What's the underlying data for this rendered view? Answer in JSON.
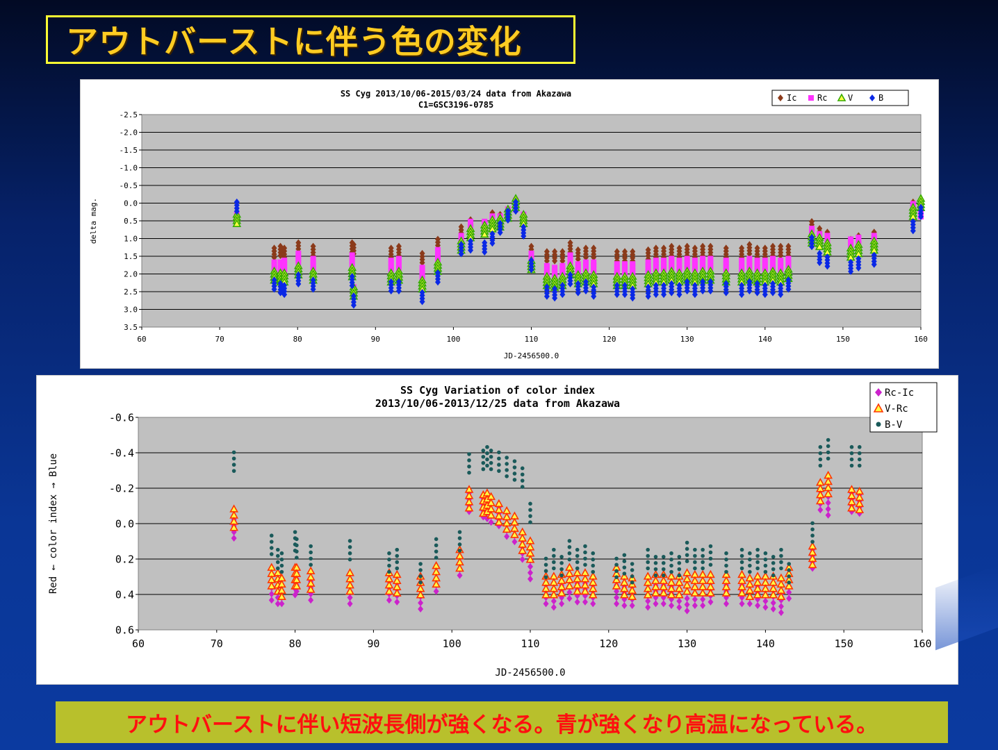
{
  "slide": {
    "title": "アウトバーストに伴う色の変化",
    "caption": "アウトバーストに伴い短波長側が強くなる。青が強くなり高温になっている。"
  },
  "chart_data": [
    {
      "type": "scatter",
      "title": "SS Cyg  2013/10/06-2015/03/24    data from Akazawa",
      "subtitle": "C1=GSC3196-0785",
      "xlabel": "JD-2456500.0",
      "ylabel": "delta mag.",
      "xlim": [
        60,
        160
      ],
      "ylim": [
        -2.5,
        3.5
      ],
      "y_inverted": true,
      "xticks": [
        "60",
        "70",
        "80",
        "90",
        "100",
        "110",
        "120",
        "130",
        "140",
        "150",
        "160"
      ],
      "yticks": [
        "-2.5",
        "-2.0",
        "-1.5",
        "-1.0",
        "-0.5",
        "0.0",
        "0.5",
        "1.0",
        "1.5",
        "2.0",
        "2.5",
        "3.0",
        "3.5"
      ],
      "grid": true,
      "legend_position": "top-right",
      "series": [
        {
          "name": "Ic",
          "color": "#8b3a1a",
          "marker": "diamond",
          "x": [
            72.2,
            77,
            77.8,
            78.3,
            80.1,
            82,
            87,
            87.2,
            92,
            93,
            96,
            98,
            101,
            102.2,
            104,
            105,
            106,
            107,
            108,
            109,
            110,
            112,
            113,
            114,
            115,
            116,
            117,
            118,
            121,
            122,
            123,
            125,
            126,
            127,
            128,
            129,
            130,
            131,
            132,
            133,
            135,
            137,
            138,
            139,
            140,
            141,
            142,
            143,
            146,
            147,
            148,
            151,
            152,
            154,
            159,
            160
          ],
          "y": [
            0.45,
            1.4,
            1.35,
            1.4,
            1.25,
            1.35,
            1.25,
            1.3,
            1.4,
            1.35,
            1.55,
            1.15,
            0.8,
            0.6,
            0.7,
            0.4,
            0.45,
            0.3,
            0.05,
            0.5,
            1.35,
            1.5,
            1.5,
            1.5,
            1.25,
            1.45,
            1.4,
            1.4,
            1.5,
            1.5,
            1.5,
            1.45,
            1.4,
            1.4,
            1.35,
            1.4,
            1.35,
            1.4,
            1.35,
            1.35,
            1.4,
            1.4,
            1.3,
            1.4,
            1.4,
            1.35,
            1.35,
            1.35,
            0.65,
            0.85,
            0.95,
            1.15,
            1.05,
            0.95,
            0.1,
            0.2
          ]
        },
        {
          "name": "Rc",
          "color": "#ff33ff",
          "marker": "square",
          "x": [
            72.2,
            77,
            77.8,
            78.3,
            80.1,
            82,
            87,
            87.2,
            92,
            93,
            96,
            98,
            101,
            102.2,
            104,
            105,
            106,
            107,
            108,
            109,
            110,
            112,
            113,
            114,
            115,
            116,
            117,
            118,
            121,
            122,
            123,
            125,
            126,
            127,
            128,
            129,
            130,
            131,
            132,
            133,
            135,
            137,
            138,
            139,
            140,
            141,
            142,
            143,
            146,
            147,
            148,
            151,
            152,
            154,
            159,
            160
          ],
          "y": [
            0.45,
            1.8,
            1.8,
            1.75,
            1.55,
            1.7,
            1.6,
            2.5,
            1.75,
            1.7,
            1.95,
            1.45,
            1.05,
            0.65,
            0.65,
            0.5,
            0.5,
            0.3,
            0.05,
            0.45,
            1.55,
            1.9,
            1.95,
            1.9,
            1.6,
            1.85,
            1.8,
            1.8,
            1.85,
            1.85,
            1.85,
            1.8,
            1.75,
            1.75,
            1.7,
            1.75,
            1.7,
            1.75,
            1.7,
            1.7,
            1.75,
            1.75,
            1.7,
            1.75,
            1.75,
            1.7,
            1.75,
            1.7,
            0.85,
            1.0,
            1.05,
            1.15,
            1.1,
            1.05,
            0.15,
            0.25
          ]
        },
        {
          "name": "V",
          "color": "#33aa00",
          "marker": "triangle",
          "x": [
            72.2,
            77,
            77.8,
            78.3,
            80.1,
            82,
            87,
            87.2,
            92,
            93,
            96,
            98,
            101,
            102.2,
            104,
            105,
            106,
            107,
            108,
            109,
            110,
            112,
            113,
            114,
            115,
            116,
            117,
            118,
            121,
            122,
            123,
            125,
            126,
            127,
            128,
            129,
            130,
            131,
            132,
            133,
            135,
            137,
            138,
            139,
            140,
            141,
            142,
            143,
            146,
            147,
            148,
            151,
            152,
            154,
            159,
            160
          ],
          "y": [
            0.45,
            2.05,
            2.1,
            2.1,
            1.9,
            2.05,
            1.95,
            2.5,
            2.1,
            2.05,
            2.3,
            1.8,
            1.2,
            0.85,
            0.75,
            0.6,
            0.55,
            0.3,
            0.0,
            0.45,
            1.75,
            2.2,
            2.25,
            2.2,
            1.9,
            2.15,
            2.1,
            2.15,
            2.2,
            2.2,
            2.2,
            2.15,
            2.1,
            2.1,
            2.05,
            2.1,
            2.05,
            2.1,
            2.05,
            2.05,
            2.1,
            2.1,
            2.05,
            2.1,
            2.1,
            2.05,
            2.1,
            2.0,
            1.0,
            1.1,
            1.25,
            1.4,
            1.3,
            1.2,
            0.25,
            0.0
          ]
        },
        {
          "name": "B",
          "color": "#0a28e6",
          "marker": "diamond",
          "x": [
            72.2,
            77,
            77.8,
            78.3,
            80.1,
            82,
            87,
            87.2,
            92,
            93,
            96,
            98,
            101,
            102.2,
            104,
            105,
            106,
            107,
            108,
            109,
            110,
            112,
            113,
            114,
            115,
            116,
            117,
            118,
            121,
            122,
            123,
            125,
            126,
            127,
            128,
            129,
            130,
            131,
            132,
            133,
            135,
            137,
            138,
            139,
            140,
            141,
            142,
            143,
            146,
            147,
            148,
            151,
            152,
            154,
            159,
            160
          ],
          "y": [
            0.1,
            2.3,
            2.4,
            2.45,
            2.15,
            2.3,
            2.2,
            2.75,
            2.35,
            2.35,
            2.65,
            2.1,
            1.3,
            1.2,
            1.25,
            1.0,
            0.7,
            0.35,
            0.1,
            0.8,
            1.75,
            2.5,
            2.55,
            2.45,
            2.15,
            2.4,
            2.35,
            2.5,
            2.45,
            2.45,
            2.55,
            2.5,
            2.45,
            2.45,
            2.4,
            2.45,
            2.35,
            2.45,
            2.35,
            2.35,
            2.4,
            2.45,
            2.35,
            2.4,
            2.45,
            2.4,
            2.45,
            2.3,
            1.1,
            1.55,
            1.65,
            1.8,
            1.7,
            1.6,
            0.65,
            0.25
          ]
        }
      ]
    },
    {
      "type": "scatter",
      "title": "SS Cyg   Variation of color index",
      "subtitle": "2013/10/06-2013/12/25    data from Akazawa",
      "xlabel": "JD-2456500.0",
      "ylabel": "Red ← color index → Blue",
      "xlim": [
        60,
        160
      ],
      "ylim": [
        -0.6,
        0.6
      ],
      "y_inverted": true,
      "xticks": [
        "60",
        "70",
        "80",
        "90",
        "100",
        "110",
        "120",
        "130",
        "140",
        "150",
        "160"
      ],
      "yticks": [
        "-0.6",
        "-0.4",
        "-0.2",
        "0.0",
        "0.2",
        "0.4",
        "0.6"
      ],
      "grid": true,
      "legend_position": "top-right",
      "series": [
        {
          "name": "Rc-Ic",
          "color": "#cc22cc",
          "marker": "diamond",
          "x": [
            72.2,
            77,
            77.8,
            78.3,
            80,
            80.2,
            82,
            87,
            92,
            93,
            96,
            98,
            101,
            102.2,
            104,
            104.5,
            105,
            106,
            107,
            108,
            109,
            110,
            112,
            113,
            114,
            115,
            116,
            117,
            118,
            121,
            122,
            123,
            125,
            126,
            127,
            128,
            129,
            130,
            131,
            132,
            133,
            135,
            137,
            138,
            139,
            140,
            141,
            142,
            143,
            146,
            147,
            148,
            151,
            152
          ],
          "y": [
            0.03,
            0.38,
            0.4,
            0.4,
            0.35,
            0.33,
            0.38,
            0.4,
            0.38,
            0.39,
            0.43,
            0.33,
            0.24,
            -0.12,
            -0.09,
            -0.08,
            -0.06,
            -0.04,
            0.02,
            0.05,
            0.15,
            0.26,
            0.4,
            0.42,
            0.4,
            0.37,
            0.39,
            0.39,
            0.4,
            0.4,
            0.41,
            0.41,
            0.42,
            0.4,
            0.4,
            0.41,
            0.42,
            0.44,
            0.41,
            0.41,
            0.39,
            0.4,
            0.4,
            0.4,
            0.41,
            0.42,
            0.43,
            0.45,
            0.37,
            0.2,
            -0.13,
            -0.1,
            -0.12,
            -0.11
          ]
        },
        {
          "name": "V-Rc",
          "color": "#ff3300",
          "marker": "triangle",
          "x": [
            72.2,
            77,
            77.8,
            78.3,
            80,
            80.2,
            82,
            87,
            92,
            93,
            96,
            98,
            101,
            102.2,
            104,
            104.5,
            105,
            106,
            107,
            108,
            109,
            110,
            112,
            113,
            114,
            115,
            116,
            117,
            118,
            121,
            122,
            123,
            125,
            126,
            127,
            128,
            129,
            130,
            131,
            132,
            133,
            135,
            137,
            138,
            139,
            140,
            141,
            142,
            143,
            146,
            147,
            148,
            151,
            152
          ],
          "y": [
            -0.03,
            0.3,
            0.33,
            0.36,
            0.3,
            0.3,
            0.32,
            0.33,
            0.33,
            0.34,
            0.35,
            0.29,
            0.2,
            -0.14,
            -0.11,
            -0.12,
            -0.1,
            -0.06,
            -0.02,
            0.01,
            0.1,
            0.15,
            0.35,
            0.35,
            0.34,
            0.3,
            0.33,
            0.33,
            0.35,
            0.3,
            0.35,
            0.36,
            0.35,
            0.34,
            0.34,
            0.35,
            0.35,
            0.33,
            0.34,
            0.34,
            0.34,
            0.34,
            0.34,
            0.36,
            0.35,
            0.35,
            0.35,
            0.36,
            0.3,
            0.18,
            -0.18,
            -0.22,
            -0.14,
            -0.13
          ]
        },
        {
          "name": "B-V",
          "color": "#1a5a5a",
          "marker": "dot",
          "x": [
            72.2,
            77,
            77.8,
            78.3,
            80,
            80.2,
            82,
            87,
            92,
            93,
            96,
            98,
            101,
            102.2,
            104,
            104.5,
            105,
            106,
            107,
            108,
            109,
            110,
            112,
            113,
            114,
            115,
            116,
            117,
            118,
            121,
            122,
            123,
            125,
            126,
            127,
            128,
            129,
            130,
            131,
            132,
            133,
            135,
            137,
            138,
            139,
            140,
            141,
            142,
            143,
            146,
            147,
            148,
            151,
            152
          ],
          "y": [
            -0.35,
            0.12,
            0.2,
            0.22,
            0.1,
            0.14,
            0.18,
            0.15,
            0.22,
            0.2,
            0.28,
            0.14,
            0.1,
            -0.34,
            -0.36,
            -0.38,
            -0.36,
            -0.35,
            -0.32,
            -0.3,
            -0.26,
            -0.06,
            0.25,
            0.2,
            0.24,
            0.15,
            0.2,
            0.18,
            0.22,
            0.25,
            0.23,
            0.28,
            0.2,
            0.24,
            0.24,
            0.22,
            0.24,
            0.16,
            0.2,
            0.2,
            0.18,
            0.22,
            0.2,
            0.22,
            0.2,
            0.22,
            0.24,
            0.2,
            0.28,
            0.05,
            -0.38,
            -0.42,
            -0.38,
            -0.38
          ]
        }
      ]
    }
  ]
}
